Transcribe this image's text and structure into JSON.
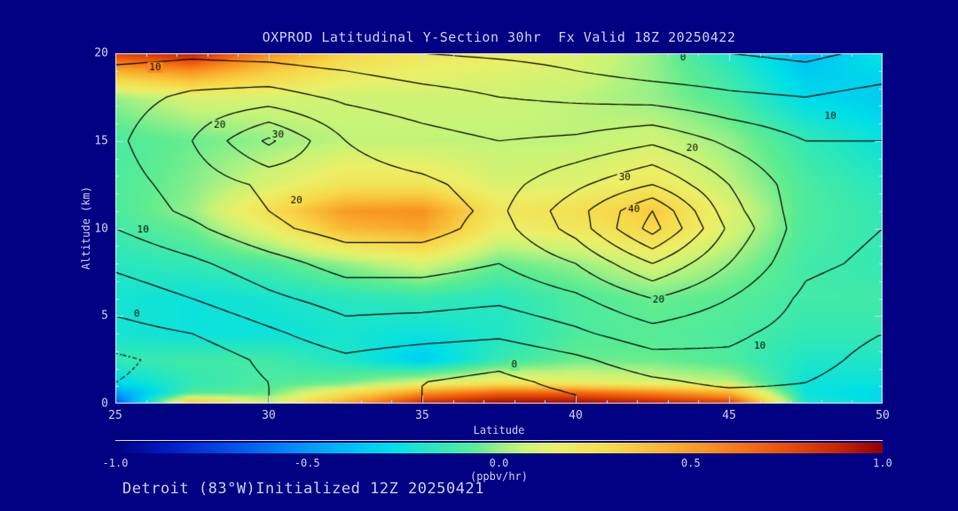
{
  "colors": {
    "background": "#000082",
    "text": "#CCCCF2",
    "frame": "#D8D8F8",
    "contour_line": "#000000"
  },
  "footer": {
    "text": "Detroit (83°W)Initialized 12Z 20250421"
  },
  "chart_data": {
    "type": "heatmap",
    "title": "OXPROD Latitudinal Y-Section 30hr  Fx Valid 18Z 20250422",
    "xlabel": "Latitude",
    "ylabel": "Altitude (km)",
    "xlim": [
      25,
      50
    ],
    "ylim": [
      0,
      20
    ],
    "x_ticks": [
      25,
      30,
      35,
      40,
      45,
      50
    ],
    "y_ticks": [
      0,
      5,
      10,
      15,
      20
    ],
    "x_minor_step": 1,
    "y_minor_step": 1,
    "grid": false,
    "fill": {
      "name": "oxidant-production-rate-fill",
      "units": "(ppbv/hr)",
      "lat": [
        25,
        27.5,
        30,
        32.5,
        35,
        37.5,
        40,
        42.5,
        45,
        47.5,
        50
      ],
      "alt": [
        0,
        0.6,
        1.2,
        2.5,
        4,
        6,
        8,
        10,
        11,
        12.5,
        15,
        17.5,
        19,
        20
      ],
      "values": [
        [
          -0.7,
          0.45,
          0.1,
          0.5,
          0.9,
          1.0,
          1.0,
          0.95,
          0.85,
          -0.2,
          -0.3
        ],
        [
          -0.5,
          -0.1,
          -0.05,
          0.25,
          0.55,
          0.7,
          0.7,
          0.6,
          0.45,
          -0.25,
          -0.3
        ],
        [
          -0.3,
          -0.15,
          -0.1,
          -0.05,
          0.1,
          0.2,
          0.15,
          0.1,
          0.05,
          -0.25,
          -0.25
        ],
        [
          -0.15,
          -0.12,
          -0.12,
          -0.2,
          -0.35,
          -0.15,
          -0.05,
          -0.05,
          -0.1,
          -0.2,
          -0.2
        ],
        [
          -0.22,
          -0.25,
          -0.25,
          -0.22,
          -0.25,
          -0.2,
          -0.1,
          -0.08,
          -0.1,
          -0.15,
          -0.15
        ],
        [
          -0.22,
          -0.25,
          -0.22,
          -0.18,
          -0.15,
          -0.18,
          -0.1,
          -0.05,
          -0.08,
          -0.12,
          -0.12
        ],
        [
          -0.18,
          -0.15,
          -0.1,
          0.0,
          0.1,
          -0.05,
          0.0,
          0.1,
          0.0,
          -0.12,
          -0.15
        ],
        [
          -0.12,
          -0.05,
          0.15,
          0.42,
          0.48,
          0.15,
          0.2,
          0.3,
          0.1,
          -0.1,
          -0.15
        ],
        [
          -0.1,
          0.0,
          0.25,
          0.52,
          0.55,
          0.2,
          0.25,
          0.35,
          0.12,
          -0.1,
          -0.15
        ],
        [
          -0.1,
          -0.02,
          0.1,
          0.22,
          0.22,
          0.1,
          0.12,
          0.2,
          0.05,
          -0.1,
          -0.18
        ],
        [
          -0.1,
          -0.05,
          0.0,
          0.05,
          0.05,
          0.05,
          0.05,
          0.08,
          0.0,
          -0.15,
          -0.25
        ],
        [
          0.0,
          0.1,
          0.1,
          0.08,
          0.08,
          0.08,
          0.05,
          0.0,
          -0.1,
          -0.3,
          -0.35
        ],
        [
          0.45,
          0.55,
          0.35,
          0.2,
          0.15,
          0.12,
          0.1,
          0.0,
          -0.15,
          -0.35,
          -0.3
        ],
        [
          0.8,
          0.92,
          0.55,
          0.3,
          0.2,
          0.18,
          0.12,
          0.0,
          -0.2,
          -0.4,
          -0.25
        ]
      ]
    },
    "contours": {
      "name": "overlay-contour-field",
      "levels": [
        0,
        5,
        10,
        15,
        20,
        25,
        30,
        35,
        40
      ],
      "negative_levels": [
        -5
      ],
      "label_levels": [
        0,
        10,
        20,
        30,
        40
      ],
      "lat": [
        25,
        27.5,
        30,
        32.5,
        35,
        37.5,
        40,
        42.5,
        45,
        47.5,
        50
      ],
      "alt": [
        0,
        0.6,
        1.2,
        2.5,
        4,
        6,
        8,
        10,
        11,
        12.5,
        15,
        17.5,
        19,
        20
      ],
      "values": [
        [
          -3,
          -2,
          0,
          1,
          0,
          -1,
          0,
          2,
          3,
          3,
          1
        ],
        [
          -4,
          -2,
          0,
          1,
          0,
          -1,
          0,
          3,
          4,
          4,
          1
        ],
        [
          -5,
          -3,
          0,
          2,
          0,
          -1,
          1,
          4,
          6,
          5,
          2
        ],
        [
          -6,
          -3,
          1,
          4,
          2,
          1,
          4,
          8,
          9,
          7,
          3
        ],
        [
          -2,
          0,
          4,
          8,
          7,
          6,
          9,
          13,
          11,
          8,
          5
        ],
        [
          2,
          5,
          9,
          12,
          12,
          11,
          14,
          20,
          15,
          9,
          7
        ],
        [
          6,
          9,
          13,
          17,
          17,
          15,
          20,
          30,
          20,
          11,
          9
        ],
        [
          10,
          14,
          19,
          22,
          22,
          18,
          27,
          42,
          24,
          12,
          10
        ],
        [
          12,
          16,
          20,
          23,
          22,
          19,
          28,
          40,
          22,
          12,
          11
        ],
        [
          13,
          17,
          21,
          22,
          21,
          18,
          24,
          30,
          20,
          12,
          11
        ],
        [
          14,
          20,
          31,
          20,
          17,
          15,
          16,
          19,
          14,
          10,
          10
        ],
        [
          13,
          16,
          17,
          14,
          12,
          10,
          9,
          8,
          6,
          5,
          7
        ],
        [
          11,
          12,
          12,
          10,
          8,
          7,
          5,
          3,
          2,
          1,
          3
        ],
        [
          8,
          9,
          8,
          6,
          5,
          4,
          3,
          1,
          0,
          -1,
          1
        ]
      ],
      "labels": [
        {
          "level": 10,
          "lat": 26.3,
          "alt": 19.2
        },
        {
          "level": 20,
          "lat": 28.4,
          "alt": 15.9
        },
        {
          "level": 30,
          "lat": 30.3,
          "alt": 15.35
        },
        {
          "level": 0,
          "lat": 43.5,
          "alt": 19.75
        },
        {
          "level": 10,
          "lat": 48.3,
          "alt": 16.4
        },
        {
          "level": 20,
          "lat": 43.8,
          "alt": 14.6
        },
        {
          "level": 30,
          "lat": 41.6,
          "alt": 12.9
        },
        {
          "level": 40,
          "lat": 41.9,
          "alt": 11.1
        },
        {
          "level": 20,
          "lat": 30.9,
          "alt": 11.6
        },
        {
          "level": 10,
          "lat": 25.9,
          "alt": 9.9
        },
        {
          "level": 0,
          "lat": 25.7,
          "alt": 5.1
        },
        {
          "level": 0,
          "lat": 38.0,
          "alt": 2.2
        },
        {
          "level": 20,
          "lat": 42.7,
          "alt": 5.9
        },
        {
          "level": 10,
          "lat": 46.0,
          "alt": 3.3
        }
      ]
    },
    "colorbar": {
      "min": -1,
      "max": 1,
      "tick_labels": [
        "-1.0",
        "-0.5",
        "0.0",
        "0.5",
        "1.0"
      ],
      "units": "(ppbv/hr)",
      "stops": [
        [
          -1.0,
          "#000080"
        ],
        [
          -0.85,
          "#0020C8"
        ],
        [
          -0.7,
          "#0050E8"
        ],
        [
          -0.55,
          "#0088F8"
        ],
        [
          -0.4,
          "#00BCF8"
        ],
        [
          -0.28,
          "#00E0E8"
        ],
        [
          -0.16,
          "#30E8B8"
        ],
        [
          -0.06,
          "#60EC90"
        ],
        [
          0.0,
          "#98F088"
        ],
        [
          0.06,
          "#C8F478"
        ],
        [
          0.15,
          "#ECF068"
        ],
        [
          0.3,
          "#F8D848"
        ],
        [
          0.45,
          "#F8B030"
        ],
        [
          0.6,
          "#F88018"
        ],
        [
          0.75,
          "#E85008"
        ],
        [
          0.88,
          "#C82800"
        ],
        [
          1.0,
          "#900000"
        ]
      ]
    }
  }
}
